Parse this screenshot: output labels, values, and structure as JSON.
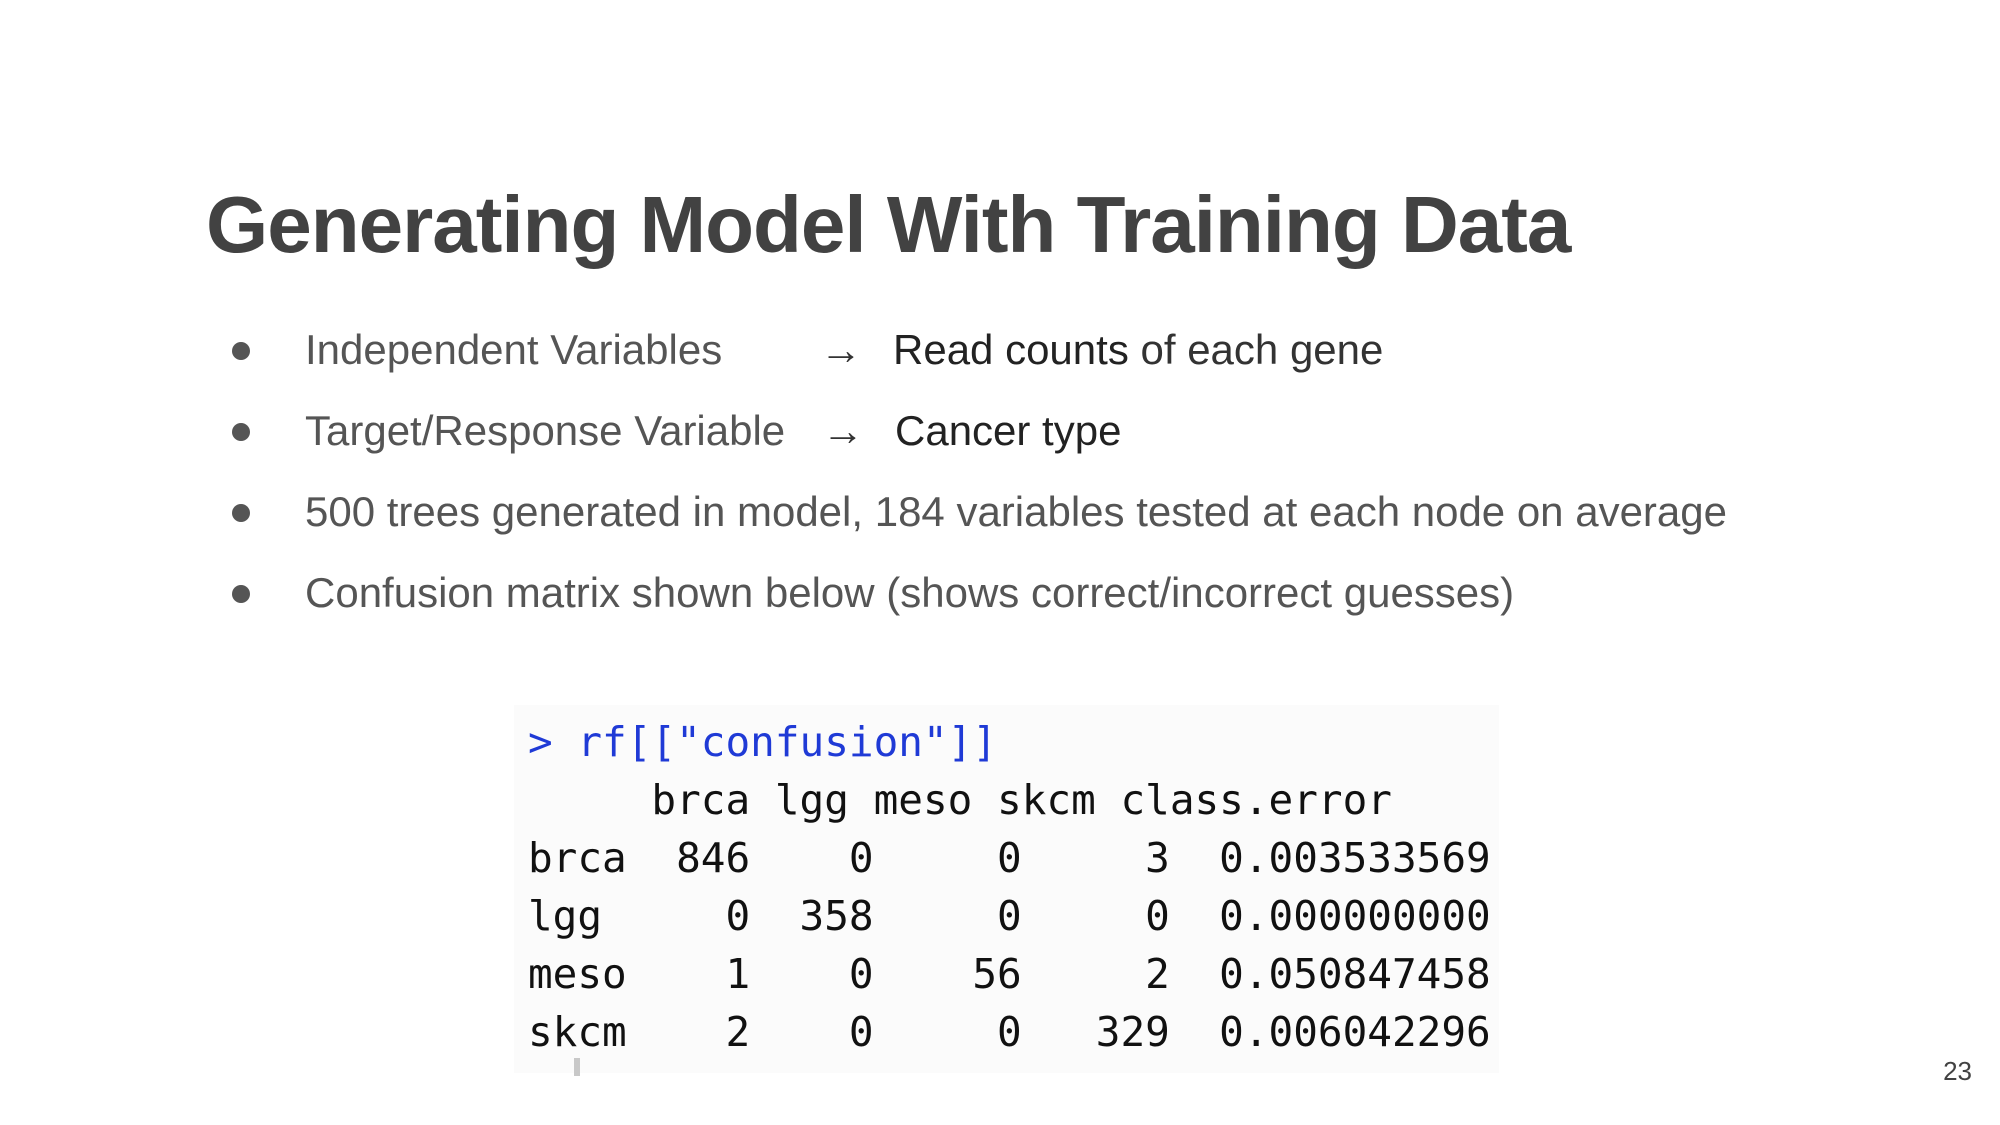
{
  "slide": {
    "title": "Generating Model With Training Data",
    "page_number": "23"
  },
  "bullets": [
    {
      "text": "Independent Variables",
      "arrow": "→",
      "term": "Read counts",
      "term_rest": " of each gene"
    },
    {
      "text": "Target/Response Variable",
      "arrow": "→",
      "term": "Cancer type",
      "term_rest": ""
    },
    {
      "text": "500 trees generated in model, 184 variables tested at each node on average"
    },
    {
      "text": "Confusion matrix shown below (shows correct/incorrect guesses)"
    }
  ],
  "console": {
    "command": "> rf[[\"confusion\"]]",
    "columns": [
      "brca",
      "lgg",
      "meso",
      "skcm",
      "class.error"
    ],
    "rows": [
      {
        "label": "brca",
        "values": [
          "846",
          "0",
          "0",
          "3",
          "0.003533569"
        ]
      },
      {
        "label": "lgg",
        "values": [
          "0",
          "358",
          "0",
          "0",
          "0.000000000"
        ]
      },
      {
        "label": "meso",
        "values": [
          "1",
          "0",
          "56",
          "2",
          "0.050847458"
        ]
      },
      {
        "label": "skcm",
        "values": [
          "2",
          "0",
          "0",
          "329",
          "0.006042296"
        ]
      }
    ],
    "command_color": "#1f3ad6"
  }
}
